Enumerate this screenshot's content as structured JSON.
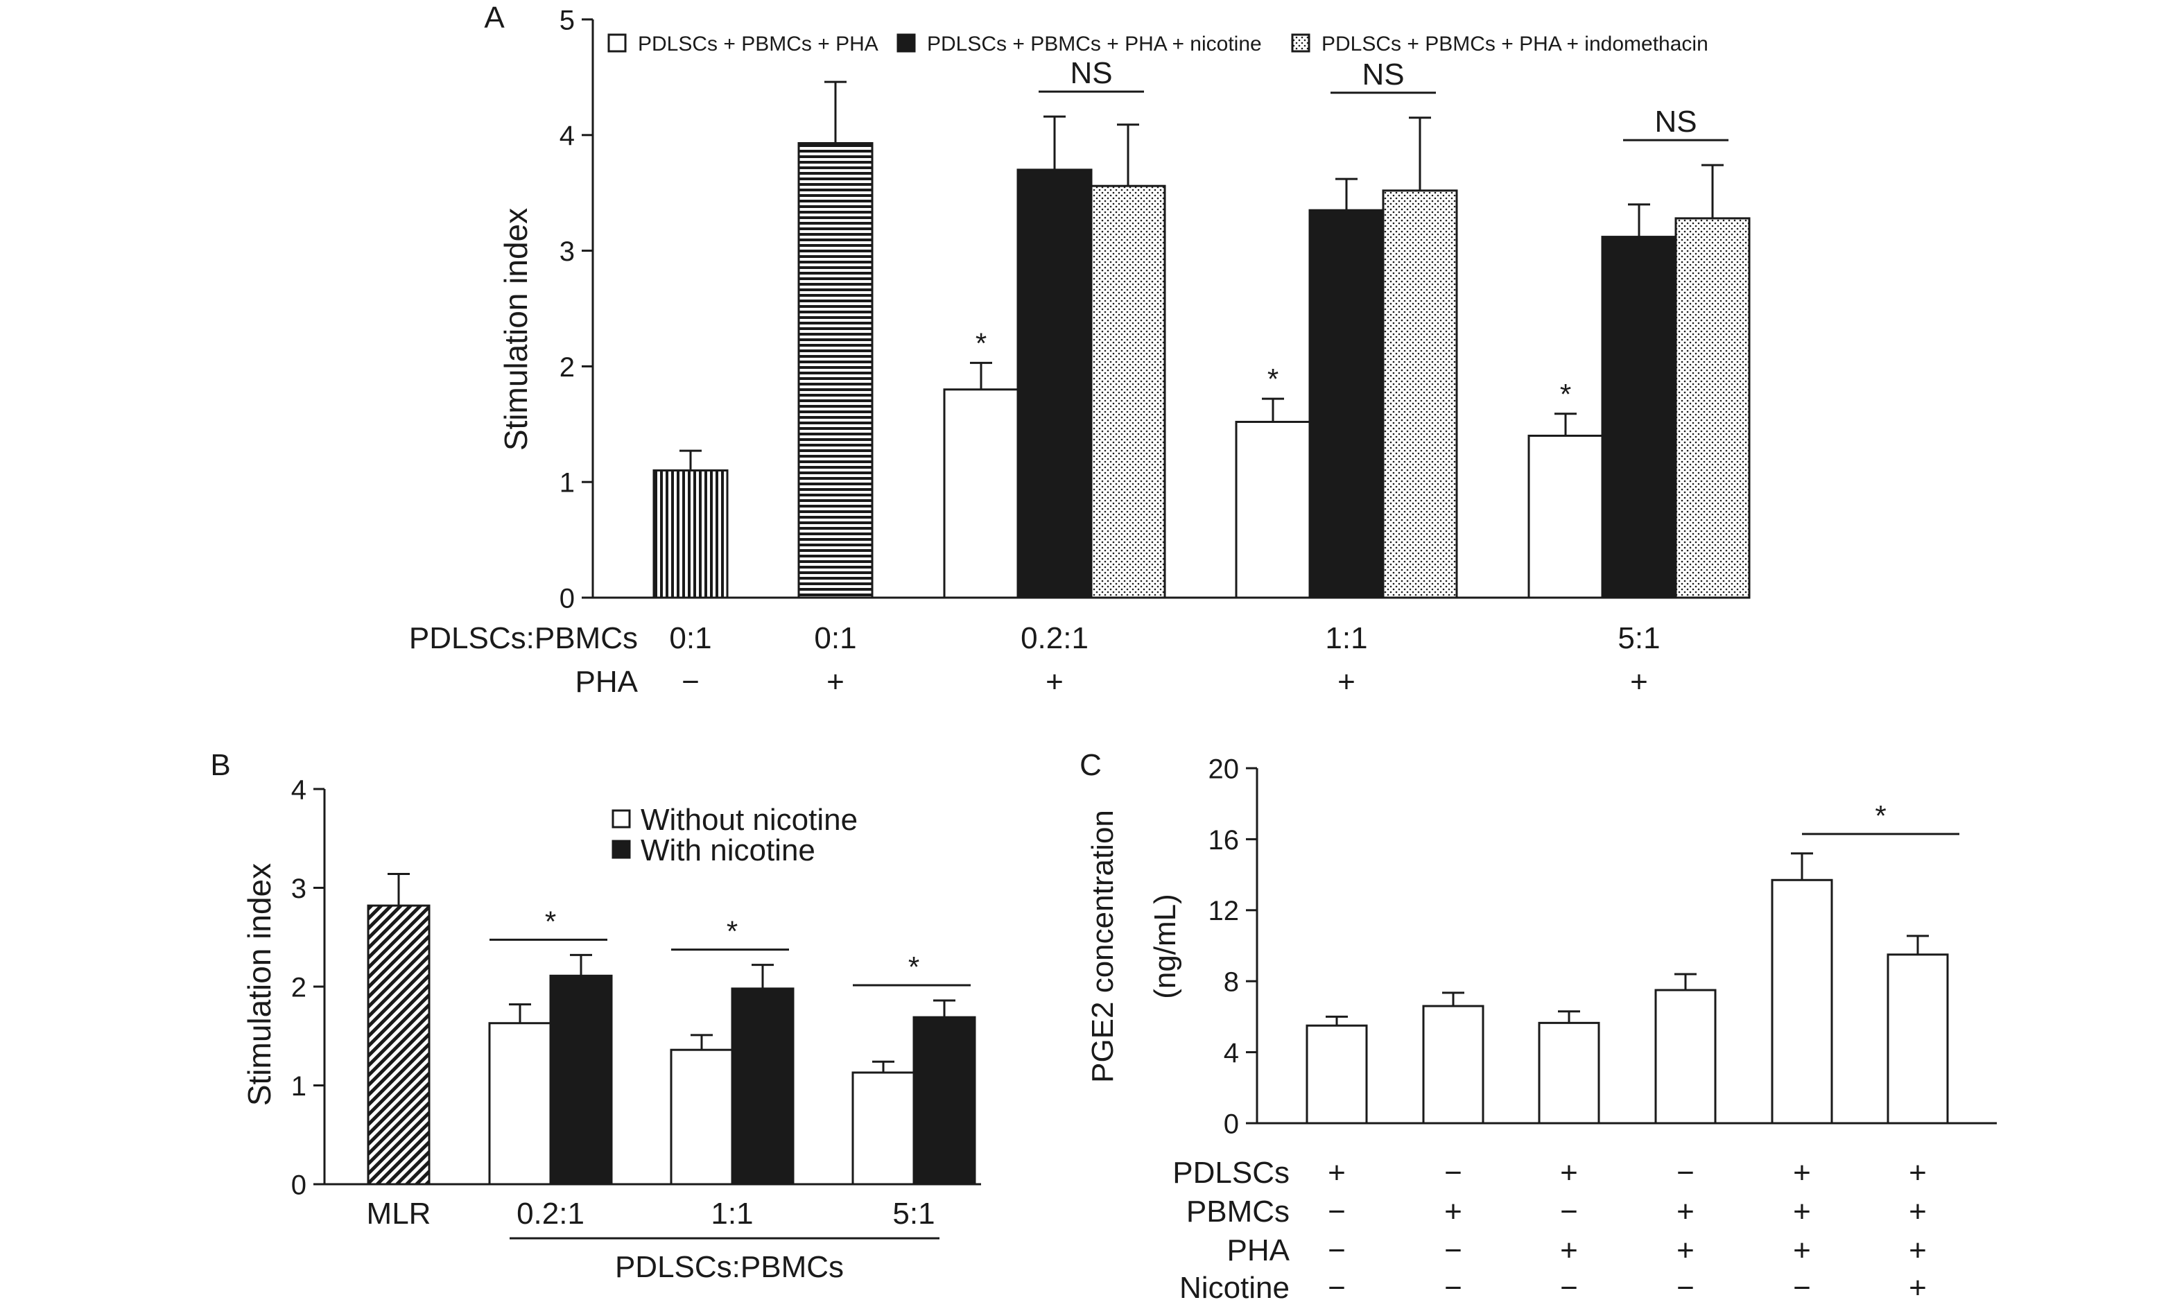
{
  "chart_data": [
    {
      "panel": "A",
      "type": "bar",
      "ylabel": "Stimulation index",
      "ylim": [
        0,
        5
      ],
      "yticks": [
        0,
        1,
        2,
        3,
        4,
        5
      ],
      "legend": [
        {
          "label": "PDLSCs + PBMCs + PHA",
          "fill": "open"
        },
        {
          "label": "PDLSCs + PBMCs + PHA + nicotine",
          "fill": "solid"
        },
        {
          "label": "PDLSCs + PBMCs + PHA + indomethacin",
          "fill": "dots"
        }
      ],
      "row_labels": [
        "PDLSCs:PBMCs",
        "PHA"
      ],
      "groups": [
        {
          "ratio": "0:1",
          "pha": "−",
          "bars": [
            {
              "value": 1.1,
              "error": 0.17,
              "fill": "vstripes"
            }
          ]
        },
        {
          "ratio": "0:1",
          "pha": "+",
          "bars": [
            {
              "value": 3.93,
              "error": 0.53,
              "fill": "hstripes"
            }
          ]
        },
        {
          "ratio": "0.2:1",
          "pha": "+",
          "bars": [
            {
              "value": 1.8,
              "error": 0.23,
              "fill": "open",
              "sig": "*"
            },
            {
              "value": 3.7,
              "error": 0.46,
              "fill": "solid"
            },
            {
              "value": 3.56,
              "error": 0.53,
              "fill": "dots"
            }
          ],
          "comparison": "NS"
        },
        {
          "ratio": "1:1",
          "pha": "+",
          "bars": [
            {
              "value": 1.52,
              "error": 0.2,
              "fill": "open",
              "sig": "*"
            },
            {
              "value": 3.35,
              "error": 0.27,
              "fill": "solid"
            },
            {
              "value": 3.52,
              "error": 0.63,
              "fill": "dots"
            }
          ],
          "comparison": "NS"
        },
        {
          "ratio": "5:1",
          "pha": "+",
          "bars": [
            {
              "value": 1.4,
              "error": 0.19,
              "fill": "open",
              "sig": "*"
            },
            {
              "value": 3.12,
              "error": 0.28,
              "fill": "solid"
            },
            {
              "value": 3.28,
              "error": 0.46,
              "fill": "dots"
            }
          ],
          "comparison": "NS"
        }
      ]
    },
    {
      "panel": "B",
      "type": "bar",
      "ylabel": "Stimulation index",
      "ylim": [
        0,
        4
      ],
      "yticks": [
        0,
        1,
        2,
        3,
        4
      ],
      "legend": [
        {
          "label": "Without nicotine",
          "fill": "open"
        },
        {
          "label": "With nicotine",
          "fill": "solid"
        }
      ],
      "group_axis_label": "PDLSCs:PBMCs",
      "groups": [
        {
          "label": "MLR",
          "bars": [
            {
              "value": 2.82,
              "error": 0.32,
              "fill": "diag"
            }
          ]
        },
        {
          "label": "0.2:1",
          "sig": "*",
          "bars": [
            {
              "value": 1.63,
              "error": 0.19,
              "fill": "open"
            },
            {
              "value": 2.11,
              "error": 0.21,
              "fill": "solid"
            }
          ]
        },
        {
          "label": "1:1",
          "sig": "*",
          "bars": [
            {
              "value": 1.36,
              "error": 0.15,
              "fill": "open"
            },
            {
              "value": 1.98,
              "error": 0.24,
              "fill": "solid"
            }
          ]
        },
        {
          "label": "5:1",
          "sig": "*",
          "bars": [
            {
              "value": 1.13,
              "error": 0.11,
              "fill": "open"
            },
            {
              "value": 1.69,
              "error": 0.17,
              "fill": "solid"
            }
          ]
        }
      ]
    },
    {
      "panel": "C",
      "type": "bar",
      "ylabel_lines": [
        "PGE2 concentration",
        "(ng/mL)"
      ],
      "ylim": [
        0,
        20
      ],
      "yticks": [
        0,
        4,
        8,
        12,
        16,
        20
      ],
      "row_labels": [
        "PDLSCs",
        "PBMCs",
        "PHA",
        "Nicotine"
      ],
      "bars": [
        {
          "value": 5.5,
          "error": 0.5,
          "conditions": [
            "+",
            "−",
            "−",
            "−"
          ]
        },
        {
          "value": 6.6,
          "error": 0.75,
          "conditions": [
            "−",
            "+",
            "−",
            "−"
          ]
        },
        {
          "value": 5.65,
          "error": 0.65,
          "conditions": [
            "+",
            "−",
            "+",
            "−"
          ]
        },
        {
          "value": 7.5,
          "error": 0.9,
          "conditions": [
            "−",
            "+",
            "+",
            "−"
          ]
        },
        {
          "value": 13.7,
          "error": 1.5,
          "conditions": [
            "+",
            "+",
            "+",
            "−"
          ]
        },
        {
          "value": 9.5,
          "error": 1.05,
          "conditions": [
            "+",
            "+",
            "+",
            "+"
          ]
        }
      ],
      "comparisons": [
        {
          "from": 4,
          "to": 5,
          "label": "*"
        }
      ]
    }
  ],
  "panel_letters": [
    "A",
    "B",
    "C"
  ]
}
